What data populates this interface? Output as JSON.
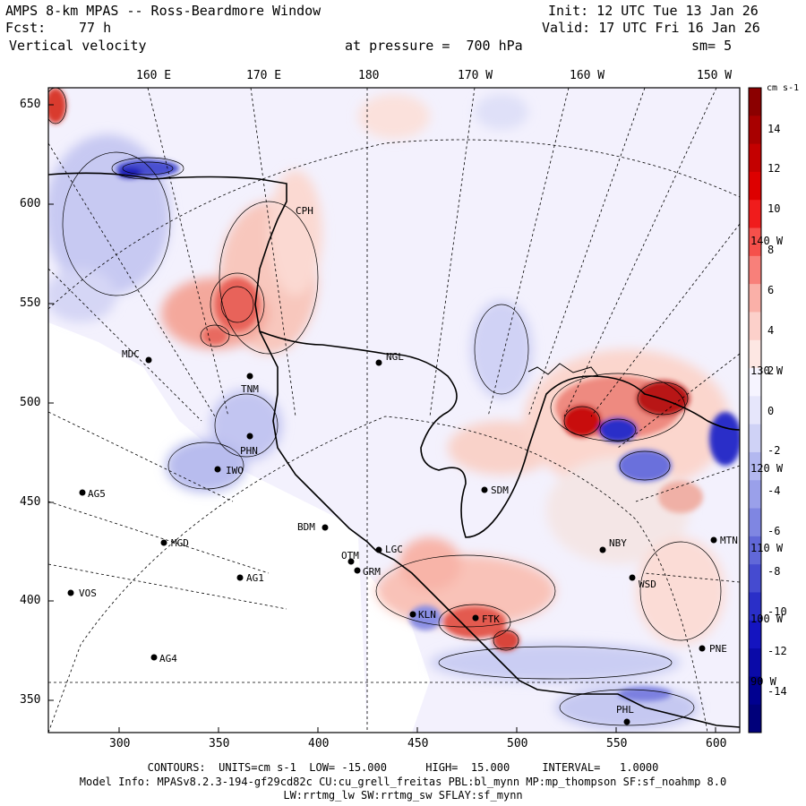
{
  "header": {
    "title": "AMPS 8-km MPAS -- Ross-Beardmore Window",
    "init": "Init: 12 UTC Tue 13 Jan 26",
    "fcst_label": "Fcst:",
    "fcst_value": "77 h",
    "valid": "Valid: 17 UTC Fri 16 Jan 26",
    "field": "Vertical velocity",
    "pressure": "at pressure =  700 hPa",
    "smoothing": "sm= 5"
  },
  "top_lon_labels": [
    "160 E",
    "170 E",
    "180",
    "170 W",
    "160 W",
    "150 W"
  ],
  "side_lon_labels": [
    "140 W",
    "130 W",
    "120 W",
    "110 W",
    "100 W",
    "90 W"
  ],
  "y_axis": [
    "650",
    "600",
    "550",
    "500",
    "450",
    "400",
    "350"
  ],
  "x_axis": [
    "300",
    "350",
    "400",
    "450",
    "500",
    "550",
    "600"
  ],
  "colorbar": {
    "units": "cm s-1",
    "labels": [
      "14",
      "12",
      "10",
      "8",
      "6",
      "4",
      "2",
      "0",
      "-2",
      "-4",
      "-6",
      "-8",
      "-10",
      "-12",
      "-14"
    ],
    "colors": [
      "#8b0000",
      "#a80000",
      "#c40000",
      "#dd0000",
      "#f01c1c",
      "#f5504b",
      "#f8807a",
      "#fab0a8",
      "#fcd0ca",
      "#fde7e3",
      "#f6f4ff",
      "#e6e6fb",
      "#cfd2f6",
      "#b3b8f0",
      "#9aa0ea",
      "#7f86e2",
      "#6168d8",
      "#454bd0",
      "#2a2fc8",
      "#1414c0",
      "#0a0aa8",
      "#000090",
      "#00007a"
    ]
  },
  "stations": [
    {
      "code": "MDC"
    },
    {
      "code": "TNM"
    },
    {
      "code": "PHN"
    },
    {
      "code": "IWO"
    },
    {
      "code": "AG5"
    },
    {
      "code": "MGD"
    },
    {
      "code": "AG1"
    },
    {
      "code": "VOS"
    },
    {
      "code": "AG4"
    },
    {
      "code": "BDM"
    },
    {
      "code": "OTM"
    },
    {
      "code": "GRM"
    },
    {
      "code": "LGC"
    },
    {
      "code": "NGL"
    },
    {
      "code": "SDM"
    },
    {
      "code": "NBY"
    },
    {
      "code": "WSD"
    },
    {
      "code": "MTN"
    },
    {
      "code": "PNE"
    },
    {
      "code": "PHL"
    },
    {
      "code": "CPH"
    },
    {
      "code": "KLN"
    },
    {
      "code": "FTK"
    }
  ],
  "footer": {
    "contours": "CONTOURS:  UNITS=cm s-1  LOW= -15.000      HIGH=  15.000     INTERVAL=   1.0000",
    "model_info": "Model Info: MPASv8.2.3-194-gf29cd82c CU:cu_grell_freitas PBL:bl_mynn MP:mp_thompson SF:sf_noahmp 8.0",
    "physics": "LW:rrtmg_lw SW:rrtmg_sw SFLAY:sf_mynn"
  }
}
